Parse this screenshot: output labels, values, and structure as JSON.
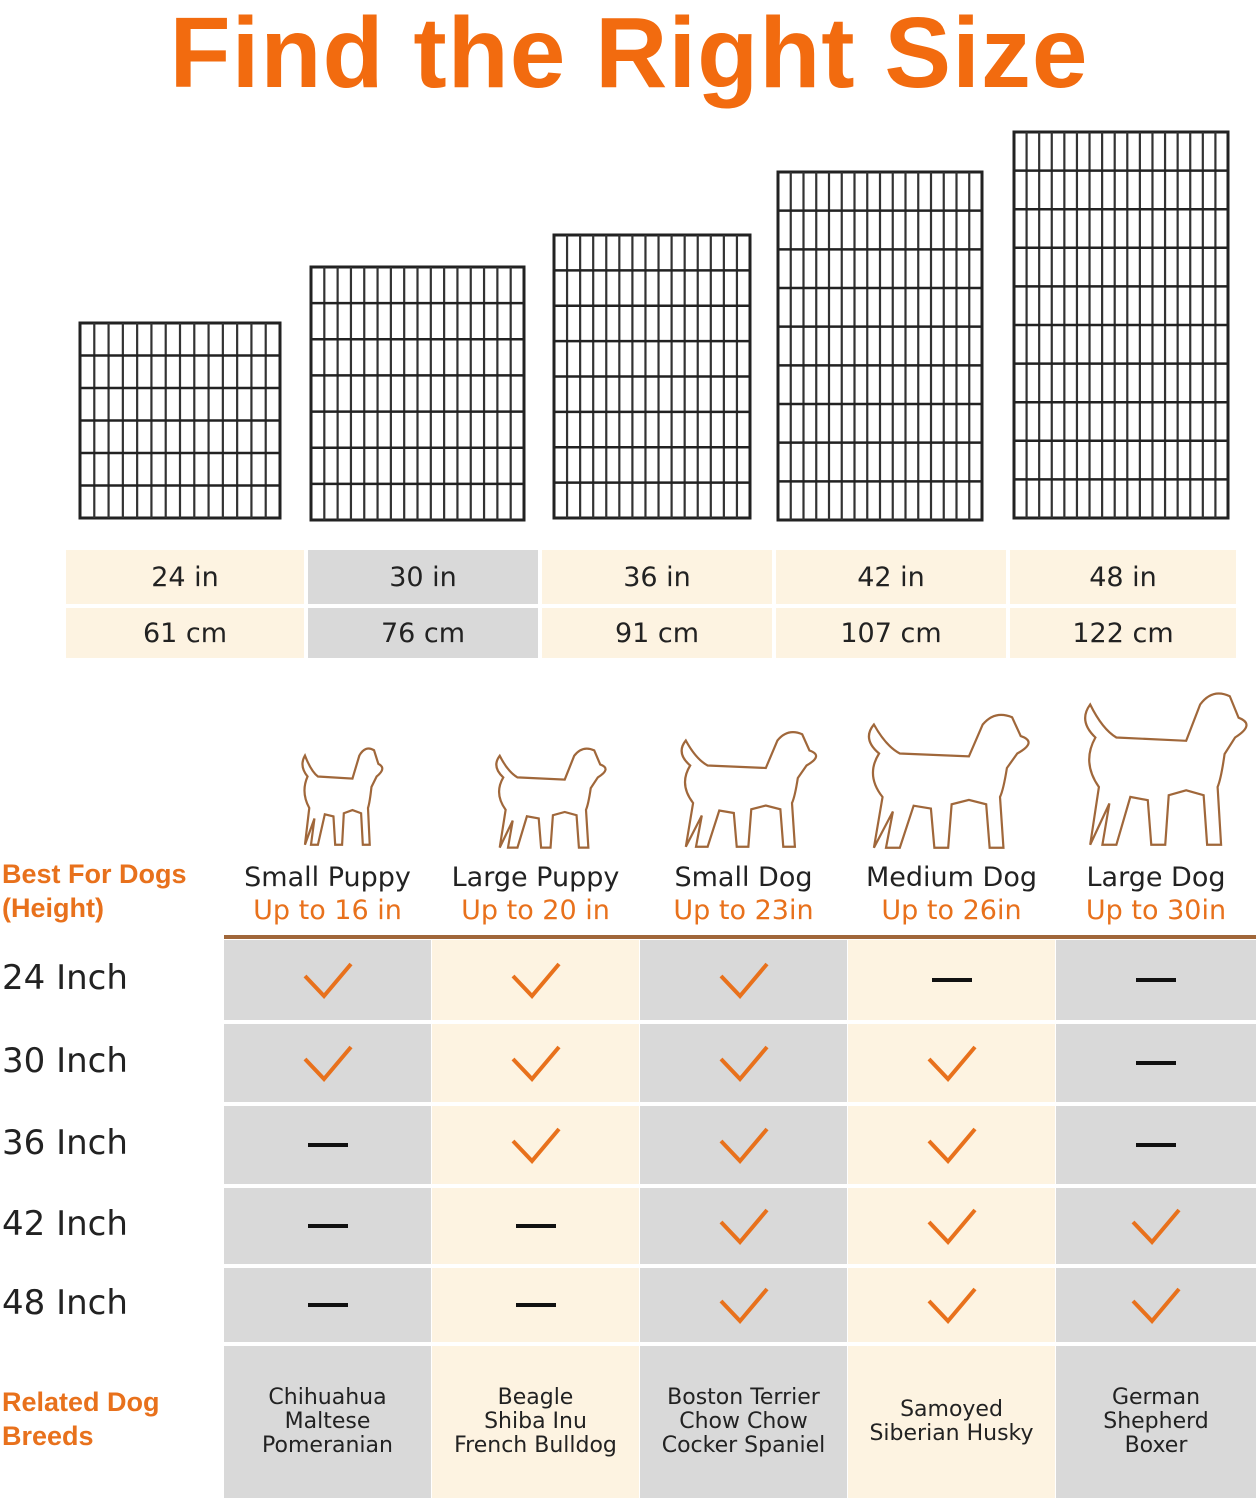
{
  "title": "Find the Right Size",
  "colors": {
    "accent": "#f26b0f",
    "orange": "#e8711c",
    "brown": "#a0673a",
    "gray": "#d9d9d9",
    "cream": "#fdf3e1"
  },
  "sizes": [
    {
      "in": "24 in",
      "cm": "61 cm",
      "highlight": false
    },
    {
      "in": "30 in",
      "cm": "76 cm",
      "highlight": true
    },
    {
      "in": "36 in",
      "cm": "91 cm",
      "highlight": false
    },
    {
      "in": "42 in",
      "cm": "107 cm",
      "highlight": false
    },
    {
      "in": "48 in",
      "cm": "122 cm",
      "highlight": false
    }
  ],
  "best_for_label": "Best For Dogs (Height)",
  "dog_types": [
    {
      "name": "Small Puppy",
      "height": "Up to 16 in",
      "icon": "chihuahua-outline-icon"
    },
    {
      "name": "Large Puppy",
      "height": "Up to 20 in",
      "icon": "terrier-outline-icon"
    },
    {
      "name": "Small Dog",
      "height": "Up to 23in",
      "icon": "beagle-outline-icon"
    },
    {
      "name": "Medium Dog",
      "height": "Up to 26in",
      "icon": "husky-outline-icon"
    },
    {
      "name": "Large Dog",
      "height": "Up to 30in",
      "icon": "shepherd-outline-icon"
    }
  ],
  "rows": [
    {
      "label": "24 Inch",
      "fit": [
        "check",
        "check",
        "check",
        "dash",
        "dash"
      ]
    },
    {
      "label": "30 Inch",
      "fit": [
        "check",
        "check",
        "check",
        "check",
        "dash"
      ]
    },
    {
      "label": "36 Inch",
      "fit": [
        "dash",
        "check",
        "check",
        "check",
        "dash"
      ]
    },
    {
      "label": "42 Inch",
      "fit": [
        "dash",
        "dash",
        "check",
        "check",
        "check"
      ]
    },
    {
      "label": "48 Inch",
      "fit": [
        "dash",
        "dash",
        "check",
        "check",
        "check"
      ]
    }
  ],
  "related_label": "Related Dog Breeds",
  "breeds": [
    [
      "Chihuahua",
      "Maltese",
      "Pomeranian"
    ],
    [
      "Beagle",
      "Shiba Inu",
      "French Bulldog"
    ],
    [
      "Boston Terrier",
      "Chow Chow",
      "Cocker Spaniel"
    ],
    [
      "Samoyed",
      "Siberian Husky"
    ],
    [
      "German",
      "Shepherd",
      "Boxer"
    ]
  ]
}
